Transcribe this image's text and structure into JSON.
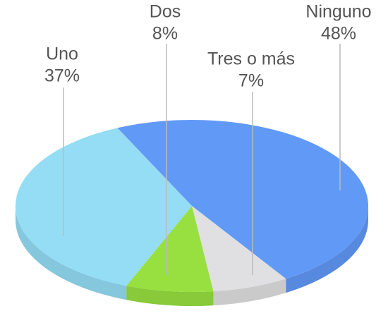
{
  "chart_data": {
    "type": "pie",
    "categories": [
      "Ninguno",
      "Tres o más",
      "Dos",
      "Uno"
    ],
    "values": [
      48,
      7,
      8,
      37
    ],
    "value_labels": [
      "48%",
      "7%",
      "8%",
      "37%"
    ],
    "colors": [
      "#6199f7",
      "#e0e0e2",
      "#97e03f",
      "#94ddf5"
    ]
  }
}
